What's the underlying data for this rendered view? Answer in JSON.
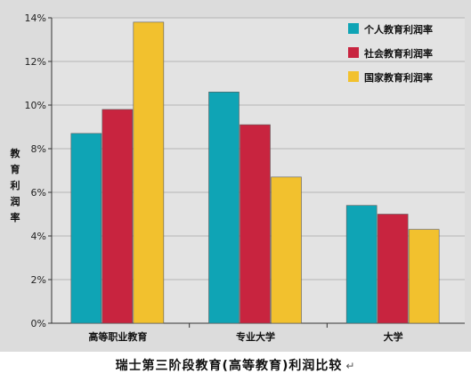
{
  "chart_data": {
    "type": "bar",
    "title": "",
    "xlabel": "",
    "ylabel": "教育利润率",
    "ylim": [
      0,
      14
    ],
    "yticks": [
      "0%",
      "2%",
      "4%",
      "6%",
      "8%",
      "10%",
      "12%",
      "14%"
    ],
    "grid": true,
    "legend_position": "top-right",
    "categories": [
      "高等职业教育",
      "专业大学",
      "大学"
    ],
    "series": [
      {
        "name": "个人教育利润率",
        "color": "#0fa4b5",
        "values": [
          8.7,
          10.6,
          5.4
        ]
      },
      {
        "name": "社会教育利润率",
        "color": "#c8243f",
        "values": [
          9.8,
          9.1,
          5.0
        ]
      },
      {
        "name": "国家教育利润率",
        "color": "#f2c12e",
        "values": [
          13.8,
          6.7,
          4.3
        ]
      }
    ]
  },
  "caption": "瑞士第三阶段教育(高等教育)利润比较",
  "caption_mark": "↵"
}
